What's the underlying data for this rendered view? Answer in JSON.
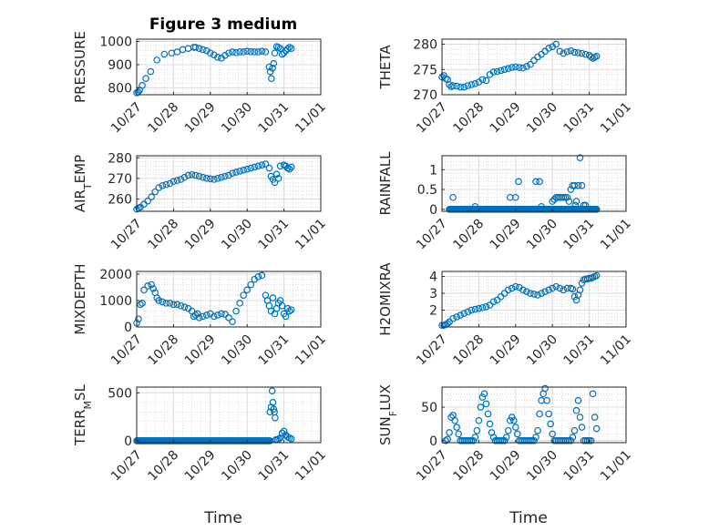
{
  "figure": {
    "title": "Figure 3 medium"
  },
  "chart_data": [
    {
      "type": "scatter",
      "id": "pressure",
      "title": "Figure 3 medium",
      "ylabel": "PRESSURE",
      "ylabel_sub": "",
      "ylabel_suffix": "",
      "ylim": [
        770,
        1010
      ],
      "yticks": [
        800,
        900,
        1000
      ],
      "xlim": [
        0,
        5
      ],
      "xticks": [
        0,
        1,
        2,
        3,
        4,
        5
      ],
      "xticklabels": [
        "10/27",
        "10/28",
        "10/29",
        "10/30",
        "10/31",
        "11/01"
      ],
      "xlabel": "",
      "grid": true,
      "marker": "circle",
      "color": "#0072bd",
      "series": [
        {
          "x": [
            0.0,
            0.04,
            0.08,
            0.15,
            0.25,
            0.38,
            0.55,
            0.75,
            0.95,
            1.1,
            1.25,
            1.4,
            1.55,
            1.6,
            1.7,
            1.8,
            1.9,
            2.0,
            2.1,
            2.2,
            2.3,
            2.4,
            2.5,
            2.6,
            2.7,
            2.8,
            2.9,
            3.0,
            3.1,
            3.2,
            3.3,
            3.4,
            3.5,
            3.6,
            3.63,
            3.66,
            3.69,
            3.72,
            3.75,
            3.8,
            3.85,
            3.9,
            3.95,
            4.0,
            4.05,
            4.1,
            4.15,
            4.2
          ],
          "y": [
            778,
            782,
            790,
            810,
            840,
            870,
            920,
            945,
            950,
            955,
            965,
            970,
            975,
            975,
            970,
            965,
            960,
            950,
            942,
            932,
            928,
            940,
            950,
            955,
            952,
            955,
            955,
            958,
            956,
            955,
            955,
            958,
            955,
            890,
            870,
            840,
            885,
            905,
            950,
            978,
            975,
            970,
            945,
            950,
            960,
            968,
            975,
            970
          ]
        }
      ]
    },
    {
      "type": "scatter",
      "id": "theta",
      "ylabel": "THETA",
      "ylabel_sub": "",
      "ylabel_suffix": "",
      "ylim": [
        270,
        281
      ],
      "yticks": [
        270,
        275,
        280
      ],
      "xlim": [
        0,
        5
      ],
      "xticks": [
        0,
        1,
        2,
        3,
        4,
        5
      ],
      "xticklabels": [
        "10/27",
        "10/28",
        "10/29",
        "10/30",
        "10/31",
        "11/01"
      ],
      "xlabel": "",
      "grid": true,
      "marker": "circle",
      "color": "#0072bd",
      "series": [
        {
          "x": [
            0.0,
            0.05,
            0.1,
            0.15,
            0.2,
            0.25,
            0.3,
            0.4,
            0.5,
            0.6,
            0.7,
            0.8,
            0.9,
            1.0,
            1.1,
            1.2,
            1.3,
            1.4,
            1.5,
            1.6,
            1.7,
            1.8,
            1.9,
            2.0,
            2.1,
            2.2,
            2.3,
            2.4,
            2.5,
            2.6,
            2.7,
            2.8,
            2.9,
            3.0,
            3.1,
            3.2,
            3.3,
            3.4,
            3.5,
            3.6,
            3.7,
            3.8,
            3.9,
            4.0,
            4.05,
            4.1,
            4.15,
            4.2
          ],
          "y": [
            273.5,
            273.8,
            273.2,
            273.0,
            272.0,
            271.6,
            271.8,
            271.7,
            271.5,
            271.5,
            271.8,
            272.0,
            272.2,
            272.5,
            273.0,
            272.8,
            274.0,
            274.5,
            274.6,
            274.8,
            275.0,
            275.2,
            275.4,
            275.5,
            275.4,
            275.3,
            275.6,
            276.0,
            276.8,
            277.5,
            278.0,
            278.6,
            279.2,
            279.5,
            280.0,
            278.6,
            278.2,
            278.5,
            278.7,
            278.4,
            278.3,
            278.2,
            278.0,
            277.8,
            277.5,
            277.2,
            277.4,
            277.6
          ]
        }
      ]
    },
    {
      "type": "scatter",
      "id": "airtemp",
      "ylabel": "AIR",
      "ylabel_sub": "T",
      "ylabel_suffix": "EMP",
      "ylim": [
        254,
        281
      ],
      "yticks": [
        260,
        270,
        280
      ],
      "xlim": [
        0,
        5
      ],
      "xticks": [
        0,
        1,
        2,
        3,
        4,
        5
      ],
      "xticklabels": [
        "10/27",
        "10/28",
        "10/29",
        "10/30",
        "10/31",
        "11/01"
      ],
      "xlabel": "",
      "grid": true,
      "marker": "circle",
      "color": "#0072bd",
      "series": [
        {
          "x": [
            0.0,
            0.05,
            0.1,
            0.2,
            0.3,
            0.4,
            0.5,
            0.6,
            0.7,
            0.8,
            0.9,
            1.0,
            1.1,
            1.2,
            1.3,
            1.4,
            1.5,
            1.6,
            1.7,
            1.8,
            1.9,
            2.0,
            2.1,
            2.2,
            2.3,
            2.4,
            2.5,
            2.6,
            2.7,
            2.8,
            2.9,
            3.0,
            3.1,
            3.2,
            3.3,
            3.4,
            3.5,
            3.6,
            3.65,
            3.7,
            3.75,
            3.8,
            3.85,
            3.9,
            4.0,
            4.05,
            4.1,
            4.15,
            4.2
          ],
          "y": [
            255,
            255.5,
            256,
            257.5,
            259,
            261,
            263.5,
            265.5,
            266.5,
            267,
            267.5,
            268.5,
            269,
            269.5,
            270.5,
            271.5,
            271.8,
            271.5,
            271,
            270.5,
            270,
            269.8,
            269.5,
            270,
            270.5,
            271,
            271.5,
            272.5,
            273,
            273.5,
            274,
            274.5,
            275,
            275.5,
            276,
            276.5,
            277,
            275,
            271,
            269.5,
            268,
            272,
            270,
            276,
            276.5,
            276,
            275,
            274.5,
            275.5
          ]
        }
      ]
    },
    {
      "type": "scatter",
      "id": "rainfall",
      "ylabel": "RAINFALL",
      "ylabel_sub": "",
      "ylabel_suffix": "",
      "ylim": [
        -0.05,
        1.35
      ],
      "yticks": [
        0,
        0.5,
        1
      ],
      "xlim": [
        0,
        5
      ],
      "xticks": [
        0,
        1,
        2,
        3,
        4,
        5
      ],
      "xticklabels": [
        "10/27",
        "10/28",
        "10/29",
        "10/30",
        "10/31",
        "11/01"
      ],
      "xlabel": "",
      "grid": true,
      "marker": "circle",
      "color": "#0072bd",
      "series": [
        {
          "x": [
            0.3,
            0.9,
            1.85,
            2.0,
            2.08,
            2.55,
            2.65,
            2.7,
            3.0,
            3.05,
            3.1,
            3.15,
            3.2,
            3.25,
            3.3,
            3.35,
            3.4,
            3.45,
            3.5,
            3.55,
            3.6,
            3.62,
            3.65,
            3.7,
            3.75,
            3.8,
            3.85,
            3.9
          ],
          "y": [
            0.3,
            0.07,
            0.3,
            0.3,
            0.7,
            0.7,
            0.7,
            0.07,
            0.2,
            0.25,
            0.3,
            0.3,
            0.3,
            0.3,
            0.3,
            0.3,
            0.3,
            0.2,
            0.5,
            0.6,
            0.6,
            0.1,
            0.2,
            0.6,
            1.3,
            0.6,
            0.1,
            0.1
          ]
        }
      ],
      "baseline": {
        "y": 0,
        "x_start": 0.2,
        "x_end": 4.2
      }
    },
    {
      "type": "scatter",
      "id": "mixdepth",
      "ylabel": "MIXDEPTH",
      "ylabel_sub": "",
      "ylabel_suffix": "",
      "ylim": [
        0,
        2100
      ],
      "yticks": [
        0,
        1000,
        2000
      ],
      "xlim": [
        0,
        5
      ],
      "xticks": [
        0,
        1,
        2,
        3,
        4,
        5
      ],
      "xticklabels": [
        "10/27",
        "10/28",
        "10/29",
        "10/30",
        "10/31",
        "11/01"
      ],
      "xlabel": "",
      "grid": true,
      "marker": "circle",
      "color": "#0072bd",
      "series": [
        {
          "x": [
            0.0,
            0.05,
            0.1,
            0.15,
            0.2,
            0.3,
            0.4,
            0.45,
            0.5,
            0.55,
            0.6,
            0.7,
            0.8,
            0.9,
            1.0,
            1.1,
            1.2,
            1.3,
            1.4,
            1.5,
            1.55,
            1.6,
            1.65,
            1.7,
            1.8,
            1.9,
            2.0,
            2.1,
            2.2,
            2.3,
            2.4,
            2.5,
            2.6,
            2.7,
            2.8,
            2.9,
            3.0,
            3.1,
            3.2,
            3.3,
            3.4,
            3.5,
            3.55,
            3.6,
            3.65,
            3.7,
            3.75,
            3.8,
            3.85,
            3.9,
            3.95,
            4.0,
            4.05,
            4.1,
            4.15,
            4.2
          ],
          "y": [
            150,
            300,
            850,
            900,
            1400,
            1550,
            1600,
            1450,
            1300,
            1100,
            1000,
            950,
            900,
            900,
            850,
            850,
            800,
            750,
            700,
            600,
            400,
            450,
            500,
            350,
            400,
            450,
            500,
            400,
            450,
            500,
            480,
            350,
            200,
            600,
            900,
            1200,
            1400,
            1600,
            1800,
            1900,
            1950,
            1200,
            1000,
            800,
            600,
            1100,
            500,
            700,
            900,
            1000,
            800,
            500,
            400,
            700,
            600,
            650
          ]
        }
      ]
    },
    {
      "type": "scatter",
      "id": "h2omixra",
      "ylabel": "H2OMIXRA",
      "ylabel_sub": "",
      "ylabel_suffix": "",
      "ylim": [
        1,
        4.3
      ],
      "yticks": [
        2,
        3,
        4
      ],
      "xlim": [
        0,
        5
      ],
      "xticks": [
        0,
        1,
        2,
        3,
        4,
        5
      ],
      "xticklabels": [
        "10/27",
        "10/28",
        "10/29",
        "10/30",
        "10/31",
        "11/01"
      ],
      "xlabel": "",
      "grid": true,
      "marker": "circle",
      "color": "#0072bd",
      "series": [
        {
          "x": [
            0.0,
            0.05,
            0.1,
            0.15,
            0.2,
            0.3,
            0.4,
            0.5,
            0.6,
            0.7,
            0.8,
            0.9,
            1.0,
            1.1,
            1.2,
            1.3,
            1.4,
            1.5,
            1.6,
            1.7,
            1.8,
            1.9,
            2.0,
            2.1,
            2.2,
            2.3,
            2.4,
            2.5,
            2.6,
            2.7,
            2.8,
            2.9,
            3.0,
            3.1,
            3.2,
            3.3,
            3.4,
            3.5,
            3.55,
            3.6,
            3.65,
            3.7,
            3.75,
            3.8,
            3.85,
            3.9,
            3.95,
            4.0,
            4.05,
            4.1,
            4.15,
            4.2
          ],
          "y": [
            1.1,
            1.1,
            1.15,
            1.2,
            1.3,
            1.5,
            1.6,
            1.7,
            1.8,
            1.9,
            2.0,
            2.05,
            2.1,
            2.15,
            2.2,
            2.3,
            2.5,
            2.6,
            2.8,
            3.0,
            3.2,
            3.3,
            3.4,
            3.35,
            3.2,
            3.1,
            3.0,
            2.95,
            2.9,
            3.0,
            3.1,
            3.2,
            3.3,
            3.4,
            3.3,
            3.2,
            3.3,
            3.3,
            3.25,
            2.8,
            2.6,
            2.9,
            3.2,
            3.6,
            3.8,
            3.85,
            3.85,
            3.9,
            3.9,
            3.95,
            4.0,
            4.05
          ]
        }
      ]
    },
    {
      "type": "scatter",
      "id": "terrmsl",
      "ylabel": "TERR",
      "ylabel_sub": "M",
      "ylabel_suffix": "SL",
      "ylim": [
        -20,
        560
      ],
      "yticks": [
        0,
        500
      ],
      "xlim": [
        0,
        5
      ],
      "xticks": [
        0,
        1,
        2,
        3,
        4,
        5
      ],
      "xticklabels": [
        "10/27",
        "10/28",
        "10/29",
        "10/30",
        "10/31",
        "11/01"
      ],
      "xlabel": "Time",
      "grid": true,
      "marker": "circle",
      "color": "#0072bd",
      "series": [
        {
          "x": [
            3.62,
            3.65,
            3.68,
            3.7,
            3.72,
            3.74,
            3.76,
            3.78,
            3.82,
            3.86,
            3.9,
            3.95,
            4.0,
            4.05,
            4.1,
            4.15,
            4.2
          ],
          "y": [
            300,
            350,
            520,
            400,
            330,
            300,
            240,
            10,
            10,
            20,
            30,
            80,
            100,
            60,
            40,
            30,
            20
          ]
        }
      ],
      "baseline": {
        "y": 0,
        "x_start": 0.0,
        "x_end": 3.62
      }
    },
    {
      "type": "scatter",
      "id": "sunflux",
      "ylabel": "SUN",
      "ylabel_sub": "F",
      "ylabel_suffix": "LUX",
      "ylim": [
        -3,
        80
      ],
      "yticks": [
        0,
        50
      ],
      "xlim": [
        0,
        5
      ],
      "xticks": [
        0,
        1,
        2,
        3,
        4,
        5
      ],
      "xticklabels": [
        "10/27",
        "10/28",
        "10/29",
        "10/30",
        "10/31",
        "11/01"
      ],
      "xlabel": "Time",
      "grid": true,
      "marker": "circle",
      "color": "#0072bd",
      "series": [
        {
          "x": [
            0.1,
            0.15,
            0.2,
            0.25,
            0.3,
            0.35,
            0.4,
            0.45,
            0.5,
            0.55,
            0.6,
            0.65,
            0.7,
            0.75,
            0.8,
            0.85,
            0.9,
            0.95,
            1.0,
            1.05,
            1.1,
            1.15,
            1.2,
            1.25,
            1.3,
            1.35,
            1.4,
            1.45,
            1.5,
            1.55,
            1.6,
            1.65,
            1.7,
            1.75,
            1.8,
            1.85,
            1.9,
            1.95,
            2.0,
            2.05,
            2.1,
            2.15,
            2.2,
            2.25,
            2.3,
            2.35,
            2.4,
            2.45,
            2.5,
            2.55,
            2.6,
            2.65,
            2.7,
            2.75,
            2.8,
            2.85,
            2.9,
            2.95,
            3.0,
            3.05,
            3.1,
            3.15,
            3.2,
            3.25,
            3.3,
            3.35,
            3.4,
            3.45,
            3.5,
            3.55,
            3.6,
            3.65,
            3.7,
            3.75,
            3.8,
            3.85,
            3.9,
            3.95,
            4.0,
            4.05,
            4.1,
            4.15,
            4.2
          ],
          "y": [
            0,
            2,
            12,
            35,
            38,
            30,
            20,
            10,
            0,
            0,
            0,
            0,
            0,
            0,
            0,
            0,
            5,
            15,
            30,
            50,
            65,
            70,
            55,
            40,
            25,
            12,
            5,
            0,
            0,
            0,
            0,
            0,
            0,
            5,
            15,
            30,
            35,
            30,
            20,
            10,
            0,
            0,
            0,
            0,
            0,
            0,
            0,
            0,
            0,
            5,
            15,
            40,
            60,
            70,
            78,
            60,
            40,
            25,
            10,
            0,
            0,
            0,
            0,
            0,
            0,
            0,
            0,
            0,
            0,
            5,
            15,
            45,
            60,
            35,
            20,
            0,
            0,
            0,
            0,
            0,
            70,
            35,
            18
          ]
        }
      ]
    }
  ]
}
